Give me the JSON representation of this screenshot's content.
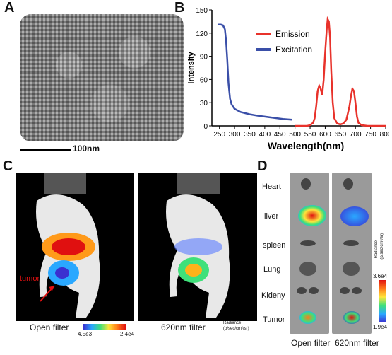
{
  "panels": {
    "a": {
      "letter": "A",
      "scalebar_label": "100nm"
    },
    "b": {
      "letter": "B"
    },
    "c": {
      "letter": "C",
      "tumor_label": "tumor",
      "left_caption": "Open filter",
      "right_caption": "620nm filter",
      "colorbar_min": "4.5e3",
      "colorbar_max": "2.4e4",
      "radiance_label": "Radiance",
      "radiance_units": "(p/sec/cm²/sr)"
    },
    "d": {
      "letter": "D",
      "organs": [
        "Heart",
        "liver",
        "spleen",
        "Lung",
        "Kideny",
        "Tumor"
      ],
      "left_caption": "Open filter",
      "right_caption": "620nm filter",
      "colorbar_max": "3.6e4",
      "colorbar_min": "1.9e4",
      "radiance_label": "Radiance",
      "radiance_units": "(p/sec/cm²/sr)"
    }
  },
  "colors": {
    "emission": "#e8322b",
    "excitation": "#3a4fa8"
  },
  "chart_data": {
    "type": "line",
    "ylabel": "intensity",
    "xlabel": "Wavelength(nm)",
    "xlim": [
      225,
      800
    ],
    "ylim": [
      0,
      150
    ],
    "xticks": [
      250,
      300,
      350,
      400,
      450,
      500,
      550,
      600,
      650,
      700,
      750,
      800
    ],
    "yticks": [
      0,
      30,
      60,
      90,
      120,
      150
    ],
    "legend_position": "top-right",
    "series": [
      {
        "name": "Emission",
        "color": "#e8322b",
        "x": [
          500,
          520,
          540,
          550,
          560,
          565,
          570,
          575,
          580,
          585,
          590,
          595,
          600,
          605,
          608,
          612,
          616,
          620,
          625,
          630,
          640,
          650,
          660,
          670,
          680,
          685,
          690,
          695,
          700,
          705,
          710,
          720,
          740,
          760,
          800
        ],
        "y": [
          0,
          0,
          0,
          1,
          4,
          10,
          25,
          45,
          52,
          48,
          40,
          60,
          95,
          125,
          138,
          135,
          115,
          70,
          30,
          10,
          3,
          2,
          3,
          8,
          25,
          38,
          48,
          45,
          30,
          12,
          4,
          1,
          0,
          0,
          0
        ]
      },
      {
        "name": "Excitation",
        "color": "#3a4fa8",
        "x": [
          245,
          255,
          262,
          268,
          272,
          276,
          280,
          285,
          290,
          300,
          320,
          350,
          380,
          420,
          460,
          490
        ],
        "y": [
          131,
          131,
          130,
          125,
          110,
          85,
          55,
          35,
          28,
          22,
          18,
          15,
          13,
          11,
          9,
          8
        ]
      }
    ]
  }
}
